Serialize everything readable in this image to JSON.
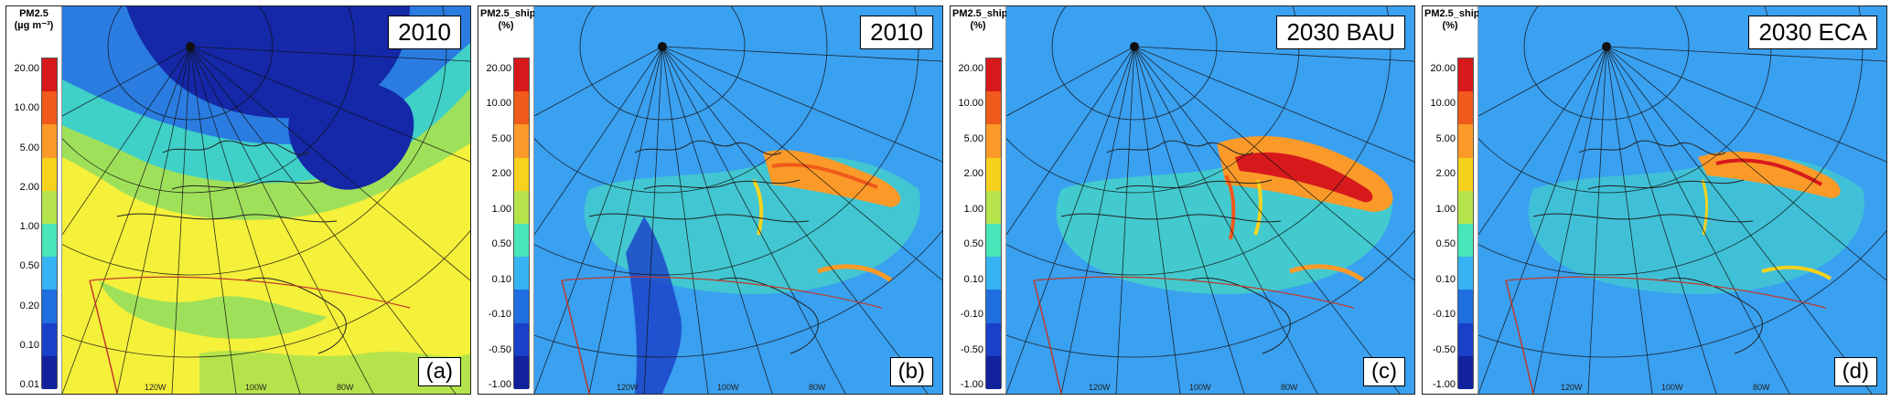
{
  "panels": [
    {
      "legend_title": [
        "PM2.5",
        "(µg m⁻³)"
      ],
      "ticks": [
        "20.00",
        "10.00",
        "5.00",
        "2.00",
        "1.00",
        "0.50",
        "0.20",
        "0.10",
        "0.01"
      ],
      "title": "2010",
      "label": "(a)",
      "lon_labels": [
        "120W",
        "100W",
        "80W"
      ]
    },
    {
      "legend_title": [
        "PM2.5_ship",
        "(%)"
      ],
      "ticks": [
        "20.00",
        "10.00",
        "5.00",
        "2.00",
        "1.00",
        "0.50",
        "0.10",
        "-0.10",
        "-0.50",
        "-1.00"
      ],
      "title": "2010",
      "label": "(b)",
      "lon_labels": [
        "120W",
        "100W",
        "80W"
      ]
    },
    {
      "legend_title": [
        "PM2.5_ship",
        "(%)"
      ],
      "ticks": [
        "20.00",
        "10.00",
        "5.00",
        "2.00",
        "1.00",
        "0.50",
        "0.10",
        "-0.10",
        "-0.50",
        "-1.00"
      ],
      "title": "2030 BAU",
      "label": "(c)",
      "lon_labels": [
        "120W",
        "100W",
        "80W"
      ]
    },
    {
      "legend_title": [
        "PM2.5_ship",
        "(%)"
      ],
      "ticks": [
        "20.00",
        "10.00",
        "5.00",
        "2.00",
        "1.00",
        "0.50",
        "0.10",
        "-0.10",
        "-0.50",
        "-1.00"
      ],
      "title": "2030 ECA",
      "label": "(d)",
      "lon_labels": [
        "120W",
        "100W",
        "80W"
      ]
    }
  ],
  "colors": {
    "colorbar": [
      "#d7191c",
      "#f05a1a",
      "#fb9a29",
      "#f7d21d",
      "#b5e34b",
      "#48e6b8",
      "#36b3f2",
      "#1f6ee0",
      "#1a3fc8",
      "#12229c"
    ],
    "ocean_background": "#3aa0f0",
    "land_yellow": "#f5f03a",
    "ice_darkblue": "#1428a8"
  }
}
